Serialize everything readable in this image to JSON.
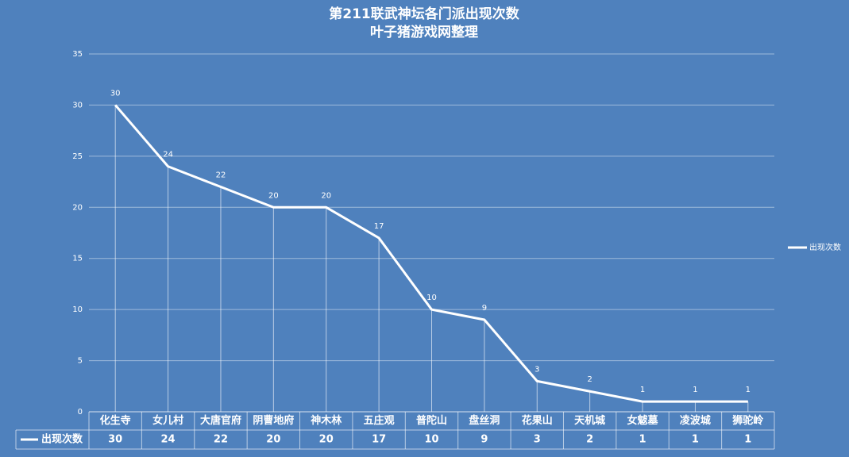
{
  "chart_data": {
    "type": "line",
    "title": "第211联武神坛各门派出现次数",
    "subtitle": "叶子猪游戏网整理",
    "categories": [
      "化生寺",
      "女儿村",
      "大唐官府",
      "阴曹地府",
      "神木林",
      "五庄观",
      "普陀山",
      "盘丝洞",
      "花果山",
      "天机城",
      "女魃墓",
      "凌波城",
      "狮驼岭"
    ],
    "series": [
      {
        "name": "出现次数",
        "color": "#ffffff",
        "values": [
          30,
          24,
          22,
          20,
          20,
          17,
          10,
          9,
          3,
          2,
          1,
          1,
          1
        ]
      }
    ],
    "ylim": [
      0,
      35
    ],
    "yticks": [
      0,
      5,
      10,
      15,
      20,
      25,
      30,
      35
    ],
    "grid": true,
    "legend": "right",
    "data_table": true,
    "drop_lines": true
  }
}
